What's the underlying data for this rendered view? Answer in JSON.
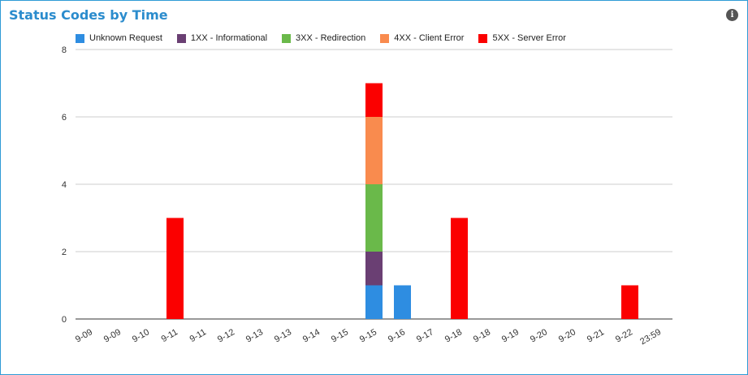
{
  "header": {
    "title": "Status Codes by Time",
    "info_icon": "info-icon"
  },
  "chart_data": {
    "type": "bar",
    "stacked": true,
    "title": "Status Codes by Time",
    "xlabel": "",
    "ylabel": "",
    "ylim": [
      0,
      8
    ],
    "yticks": [
      0,
      2,
      4,
      6,
      8
    ],
    "grid": true,
    "legend_position": "top",
    "categories": [
      "9-09",
      "9-09",
      "9-10",
      "9-11",
      "9-11",
      "9-12",
      "9-13",
      "9-13",
      "9-14",
      "9-15",
      "9-15",
      "9-16",
      "9-17",
      "9-18",
      "9-18",
      "9-19",
      "9-20",
      "9-20",
      "9-21",
      "9-22",
      "23:59"
    ],
    "series": [
      {
        "name": "Unknown Request",
        "color": "#2e8de1",
        "values": [
          0,
          0,
          0,
          0,
          0,
          0,
          0,
          0,
          0,
          0,
          1,
          1,
          0,
          0,
          0,
          0,
          0,
          0,
          0,
          0,
          0
        ]
      },
      {
        "name": "1XX - Informational",
        "color": "#6a3f73",
        "values": [
          0,
          0,
          0,
          0,
          0,
          0,
          0,
          0,
          0,
          0,
          1,
          0,
          0,
          0,
          0,
          0,
          0,
          0,
          0,
          0,
          0
        ]
      },
      {
        "name": "3XX - Redirection",
        "color": "#6ab94a",
        "values": [
          0,
          0,
          0,
          0,
          0,
          0,
          0,
          0,
          0,
          0,
          2,
          0,
          0,
          0,
          0,
          0,
          0,
          0,
          0,
          0,
          0
        ]
      },
      {
        "name": "4XX - Client Error",
        "color": "#f98b4e",
        "values": [
          0,
          0,
          0,
          0,
          0,
          0,
          0,
          0,
          0,
          0,
          2,
          0,
          0,
          0,
          0,
          0,
          0,
          0,
          0,
          0,
          0
        ]
      },
      {
        "name": "5XX - Server Error",
        "color": "#fb0000",
        "values": [
          0,
          0,
          0,
          3,
          0,
          0,
          0,
          0,
          0,
          0,
          1,
          0,
          0,
          3,
          0,
          0,
          0,
          0,
          0,
          1,
          0
        ]
      }
    ]
  }
}
